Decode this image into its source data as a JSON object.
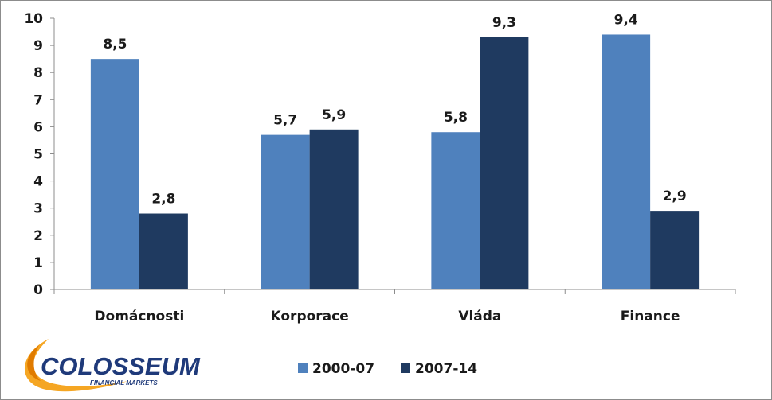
{
  "chart_data": {
    "type": "bar",
    "categories": [
      "Domácnosti",
      "Korporace",
      "Vláda",
      "Finance"
    ],
    "series": [
      {
        "name": "2000-07",
        "values": [
          8.5,
          5.7,
          5.8,
          9.4
        ],
        "labels": [
          "8,5",
          "5,7",
          "5,8",
          "9,4"
        ],
        "color": "#4f81bd"
      },
      {
        "name": "2007-14",
        "values": [
          2.8,
          5.9,
          9.3,
          2.9
        ],
        "labels": [
          "2,8",
          "5,9",
          "9,3",
          "2,9"
        ],
        "color": "#1f3a60"
      }
    ],
    "ylim": [
      0,
      10
    ],
    "yticks": [
      "0",
      "1",
      "2",
      "3",
      "4",
      "5",
      "6",
      "7",
      "8",
      "9",
      "10"
    ],
    "title": "",
    "xlabel": "",
    "ylabel": "",
    "grid": false,
    "legend_position": "bottom"
  },
  "logo": {
    "name": "COLOSSEUM",
    "tagline": "FINANCIAL MARKETS",
    "colors": {
      "swoosh": "#f5a623",
      "text": "#1f3a7a"
    }
  }
}
